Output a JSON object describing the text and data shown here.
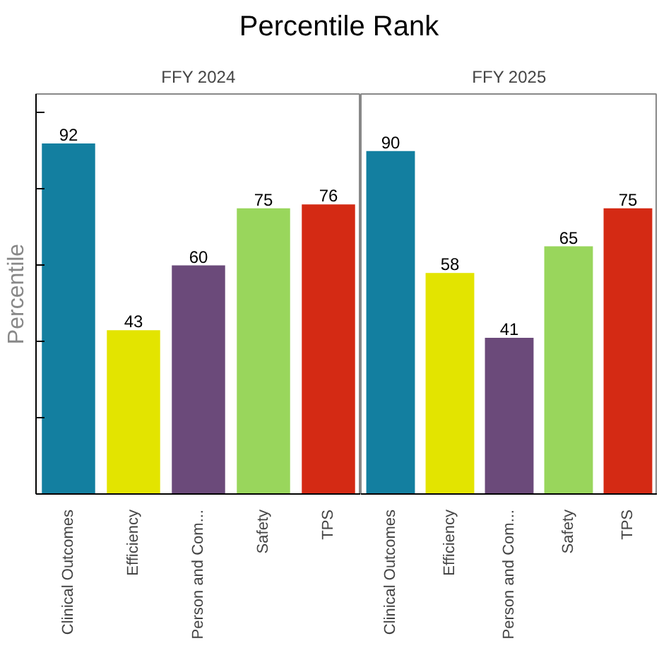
{
  "chart_data": [
    {
      "type": "bar",
      "title": "Percentile Rank",
      "subtitle": "FFY 2024",
      "ylabel": "Percentile",
      "categories": [
        "Clinical Outcomes",
        "Efficiency",
        "Person and Com...",
        "Safety",
        "TPS"
      ],
      "values": [
        92,
        43,
        60,
        75,
        76
      ],
      "colors": [
        "#137fa0",
        "#e3e400",
        "#6b4a7a",
        "#99d65c",
        "#d42a14"
      ],
      "ylim": [
        0,
        105
      ],
      "yticks": [
        {
          "value": 20,
          "label": null
        },
        {
          "value": 40,
          "label": null
        },
        {
          "value": 60,
          "label": null
        },
        {
          "value": 80,
          "label": null
        },
        {
          "value": 100,
          "label": null
        }
      ],
      "tick_labels": "x",
      "data_labels": true,
      "grid": false
    },
    {
      "type": "bar",
      "subtitle": "FFY 2025",
      "categories": [
        "Clinical Outcomes",
        "Efficiency",
        "Person and Com...",
        "Safety",
        "TPS"
      ],
      "values": [
        90,
        58,
        41,
        65,
        75
      ],
      "colors": [
        "#137fa0",
        "#e3e400",
        "#6b4a7a",
        "#99d65c",
        "#d42a14"
      ],
      "ylim": [
        0,
        105
      ],
      "tick_labels": "x",
      "data_labels": true,
      "grid": false
    }
  ]
}
